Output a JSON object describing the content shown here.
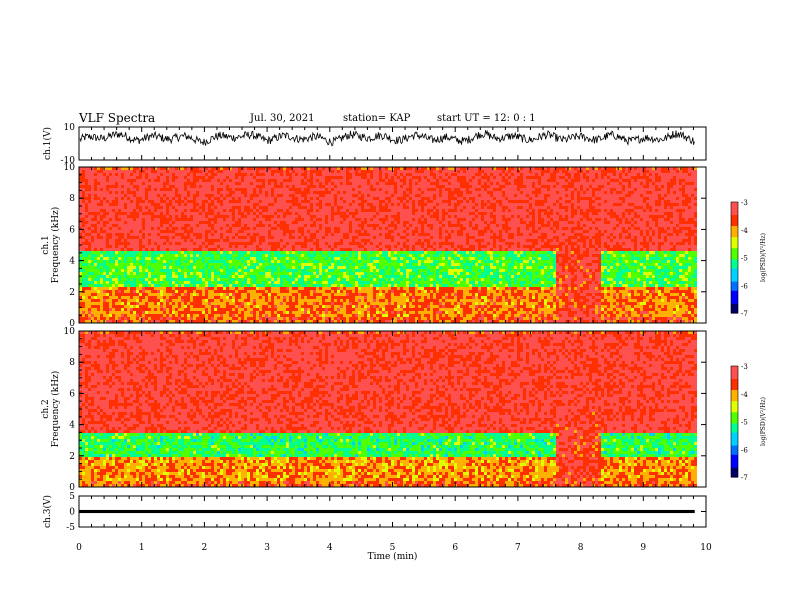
{
  "header": {
    "title": "VLF Spectra",
    "date": "Jul. 30, 2021",
    "station": "station= KAP",
    "start_time": "start  UT =   12: 0  : 1"
  },
  "colors": {
    "colormap": [
      "#000066",
      "#0000ff",
      "#0070ff",
      "#00d0ff",
      "#00ff90",
      "#50ff00",
      "#e0ff00",
      "#ffb000",
      "#ff3000",
      "#ff5050"
    ],
    "waveform": "#000000",
    "axis": "#000000"
  },
  "chart_data": [
    {
      "type": "line",
      "panel": "ch1-waveform",
      "ylabel": "ch.1(V)",
      "ylim": [
        -10,
        10
      ],
      "y_ticks": [
        "10",
        "-10"
      ],
      "xlim": [
        0,
        10
      ],
      "data_extent_min": 9.82,
      "description_of_series": "noisy oscillating waveform centered near +3 V, swinging roughly 0 to +7 V",
      "x": [
        0,
        0.5,
        1,
        1.5,
        2,
        2.5,
        3,
        3.5,
        4,
        4.5,
        5,
        5.5,
        6,
        6.5,
        7,
        7.5,
        8,
        8.5,
        9,
        9.5,
        9.8
      ],
      "y": [
        2,
        5,
        3,
        4,
        2,
        5,
        3,
        4,
        2,
        5,
        3,
        4,
        2,
        5,
        3,
        4,
        3,
        4,
        2,
        5,
        3
      ]
    },
    {
      "type": "heatmap",
      "panel": "ch1-spectrogram",
      "ylabel": "ch.1\nFrequency  (kHz)",
      "xlim": [
        0,
        10
      ],
      "ylim": [
        0,
        10
      ],
      "y_ticks": [
        "0",
        "2",
        "4",
        "6",
        "8",
        "10"
      ],
      "colorbar": {
        "label": "log(PSD)(V²/Hz)",
        "range": [
          -7,
          -3
        ],
        "ticks": [
          "-3",
          "-4",
          "-5",
          "-6",
          "-7"
        ]
      },
      "bands_khz_to_logpsd": [
        [
          0,
          0.5,
          -3.6
        ],
        [
          0.5,
          2.5,
          -3.8
        ],
        [
          2.5,
          4.8,
          -4.9
        ],
        [
          4.8,
          10,
          -3.3
        ]
      ],
      "event_interval_min": [
        7.6,
        8.3
      ],
      "event_logpsd": -3.4
    },
    {
      "type": "heatmap",
      "panel": "ch2-spectrogram",
      "ylabel": "ch.2\nFrequency  (kHz)",
      "xlim": [
        0,
        10
      ],
      "ylim": [
        0,
        10
      ],
      "y_ticks": [
        "0",
        "2",
        "4",
        "6",
        "8",
        "10"
      ],
      "colorbar": {
        "label": "log(PSD)(V²/Hz)",
        "range": [
          -7,
          -3
        ],
        "ticks": [
          "-3",
          "-4",
          "-5",
          "-6",
          "-7"
        ]
      },
      "bands_khz_to_logpsd": [
        [
          0,
          0.5,
          -3.7
        ],
        [
          0.5,
          2,
          -3.9
        ],
        [
          2,
          3.5,
          -5.0
        ],
        [
          3.5,
          10,
          -3.3
        ]
      ],
      "event_interval_min": [
        7.6,
        8.3
      ],
      "event_logpsd": -3.4
    },
    {
      "type": "line",
      "panel": "ch3-waveform",
      "ylabel": "ch.3(V)",
      "ylim": [
        -5,
        5
      ],
      "y_ticks": [
        "5",
        "0",
        "-5"
      ],
      "xlim": [
        0,
        10
      ],
      "xlabel": "Time  (min)",
      "x_ticks": [
        "0",
        "1",
        "2",
        "3",
        "4",
        "5",
        "6",
        "7",
        "8",
        "9",
        "10"
      ],
      "band_y": [
        -0.5,
        0.5
      ],
      "data_extent_min": 9.82
    }
  ]
}
